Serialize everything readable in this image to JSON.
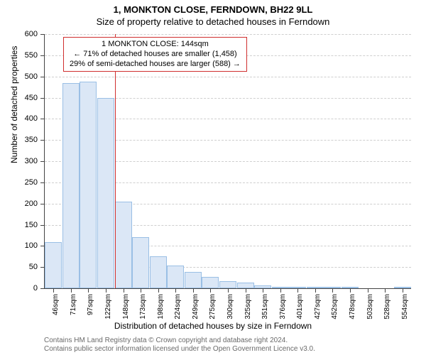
{
  "title": {
    "main": "1, MONKTON CLOSE, FERNDOWN, BH22 9LL",
    "sub": "Size of property relative to detached houses in Ferndown",
    "fontsize_main": 13,
    "fontsize_sub": 13
  },
  "chart": {
    "type": "histogram",
    "ylabel": "Number of detached properties",
    "xlabel": "Distribution of detached houses by size in Ferndown",
    "ylim": [
      0,
      600
    ],
    "ytick_step": 50,
    "x_categories": [
      "46sqm",
      "71sqm",
      "97sqm",
      "122sqm",
      "148sqm",
      "173sqm",
      "198sqm",
      "224sqm",
      "249sqm",
      "275sqm",
      "300sqm",
      "325sqm",
      "351sqm",
      "376sqm",
      "401sqm",
      "427sqm",
      "452sqm",
      "478sqm",
      "503sqm",
      "528sqm",
      "554sqm"
    ],
    "values": [
      109,
      485,
      488,
      450,
      205,
      120,
      75,
      54,
      38,
      27,
      16,
      14,
      6,
      4,
      4,
      2,
      2,
      2,
      0,
      0,
      2
    ],
    "bar_fill": "#dbe7f6",
    "bar_stroke": "#9abfe5",
    "grid_color": "#cfcfcf",
    "axis_color": "#444444",
    "background": "#ffffff",
    "marker": {
      "color": "#d02f2f",
      "category_index": 4,
      "position_within": 0.0
    },
    "callout": {
      "lines": [
        "1 MONKTON CLOSE: 144sqm",
        "← 71% of detached houses are smaller (1,458)",
        "29% of semi-detached houses are larger (588) →"
      ],
      "border_color": "#d02f2f",
      "fontsize": 11
    },
    "label_fontsize": 12,
    "tick_fontsize": 11
  },
  "footer": {
    "lines": [
      "Contains HM Land Registry data © Crown copyright and database right 2024.",
      "Contains public sector information licensed under the Open Government Licence v3.0."
    ],
    "color": "#6a6a6a",
    "fontsize": 10
  }
}
